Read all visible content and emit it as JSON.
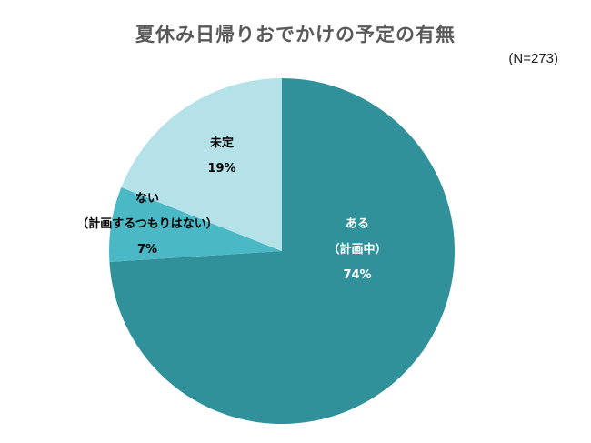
{
  "chart_data": {
    "type": "pie",
    "title": "夏休み日帰りおでかけの予定の有無",
    "note": "(N=273)",
    "slices": [
      {
        "label_lines": [
          "ある",
          "（計画中）"
        ],
        "value": 74,
        "value_label": "74%",
        "color": "#31919a",
        "text_color": "#ffffff"
      },
      {
        "label_lines": [
          "ない",
          "（計画するつもりはない）"
        ],
        "value": 7,
        "value_label": "7%",
        "color": "#4bb8c6",
        "text_color": "#000000"
      },
      {
        "label_lines": [
          "未定"
        ],
        "value": 19,
        "value_label": "19%",
        "color": "#b4e2e8",
        "text_color": "#000000"
      }
    ]
  }
}
